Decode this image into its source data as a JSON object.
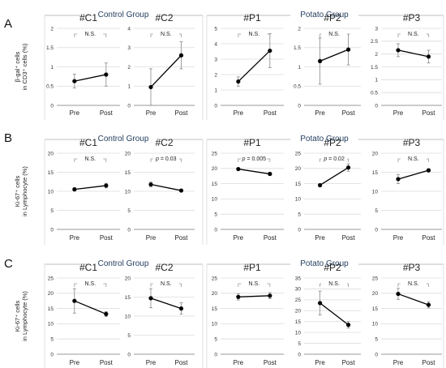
{
  "figure": {
    "rows": [
      {
        "letter": "A",
        "group_left": "Control Group",
        "group_right": "Potato Group",
        "ylabel_lines": [
          "β-gal⁺ cells",
          "in CD3⁺ cells (%)"
        ]
      },
      {
        "letter": "B",
        "group_left": "Control Group",
        "group_right": "Potato Group",
        "ylabel_lines": [
          "Ki-67⁺ cells",
          "in Lymphocyte (%)"
        ]
      },
      {
        "letter": "C",
        "group_left": "Control Group",
        "group_right": "Potato Group",
        "ylabel_lines": [
          "Ki-67⁺ cells",
          "in Lymphocyte (%)"
        ]
      }
    ]
  },
  "chart_data": [
    {
      "type": "line",
      "title": "#C1",
      "categories": [
        "Pre",
        "Post"
      ],
      "values": [
        0.63,
        0.8
      ],
      "errors": [
        0.18,
        0.3
      ],
      "ylim": [
        0,
        2
      ],
      "yticks": [
        0,
        0.5,
        1,
        1.5,
        2
      ],
      "significance": "N.S.",
      "line_color": "#000000"
    },
    {
      "type": "line",
      "title": "#C2",
      "categories": [
        "Pre",
        "Post"
      ],
      "values": [
        0.95,
        2.6
      ],
      "errors": [
        0.95,
        0.7
      ],
      "ylim": [
        0,
        4
      ],
      "yticks": [
        0,
        1,
        2,
        3,
        4
      ],
      "significance": "N.S.",
      "line_color": "#000000"
    },
    {
      "type": "line",
      "title": "#P1",
      "categories": [
        "Pre",
        "Post"
      ],
      "values": [
        1.55,
        3.55
      ],
      "errors": [
        0.3,
        1.1
      ],
      "ylim": [
        0,
        5
      ],
      "yticks": [
        0,
        1,
        2,
        3,
        4,
        5
      ],
      "significance": "N.S.",
      "line_color": "#000000"
    },
    {
      "type": "line",
      "title": "#P2",
      "categories": [
        "Pre",
        "Post"
      ],
      "values": [
        1.15,
        1.45
      ],
      "errors": [
        0.6,
        0.4
      ],
      "ylim": [
        0,
        2
      ],
      "yticks": [
        0,
        0.5,
        1,
        1.5,
        2
      ],
      "significance": "N.S.",
      "line_color": "#000000"
    },
    {
      "type": "line",
      "title": "#P3",
      "categories": [
        "Pre",
        "Post"
      ],
      "values": [
        2.15,
        1.9
      ],
      "errors": [
        0.25,
        0.25
      ],
      "ylim": [
        0,
        3
      ],
      "yticks": [
        0,
        0.5,
        1,
        1.5,
        2,
        2.5,
        3
      ],
      "significance": "N.S.",
      "line_color": "#000000"
    },
    {
      "type": "line",
      "title": "#C1",
      "categories": [
        "Pre",
        "Post"
      ],
      "values": [
        10.5,
        11.5
      ],
      "errors": [
        0.4,
        0.6
      ],
      "ylim": [
        0,
        20
      ],
      "yticks": [
        0,
        5,
        10,
        15,
        20
      ],
      "significance": "N.S.",
      "line_color": "#000000"
    },
    {
      "type": "line",
      "title": "#C2",
      "categories": [
        "Pre",
        "Post"
      ],
      "values": [
        11.8,
        10.2
      ],
      "errors": [
        0.6,
        0.3
      ],
      "ylim": [
        0,
        20
      ],
      "yticks": [
        0,
        5,
        10,
        15,
        20
      ],
      "significance": "p = 0.03",
      "line_color": "#000000"
    },
    {
      "type": "line",
      "title": "#P1",
      "categories": [
        "Pre",
        "Post"
      ],
      "values": [
        19.8,
        18.2
      ],
      "errors": [
        0.3,
        0.5
      ],
      "ylim": [
        0,
        25
      ],
      "yticks": [
        0,
        5,
        10,
        15,
        20,
        25
      ],
      "significance": "p = 0.005",
      "line_color": "#000000"
    },
    {
      "type": "line",
      "title": "#P2",
      "categories": [
        "Pre",
        "Post"
      ],
      "values": [
        14.5,
        20.3
      ],
      "errors": [
        0.4,
        1.2
      ],
      "ylim": [
        0,
        25
      ],
      "yticks": [
        0,
        5,
        10,
        15,
        20,
        25
      ],
      "significance": "p = 0.02",
      "line_color": "#000000"
    },
    {
      "type": "line",
      "title": "#P3",
      "categories": [
        "Pre",
        "Post"
      ],
      "values": [
        13.2,
        15.5
      ],
      "errors": [
        1.2,
        0.4
      ],
      "ylim": [
        0,
        20
      ],
      "yticks": [
        0,
        5,
        10,
        15,
        20
      ],
      "significance": "N.S.",
      "line_color": "#000000"
    },
    {
      "type": "line",
      "title": "#C1",
      "categories": [
        "Pre",
        "Post"
      ],
      "values": [
        17.5,
        13.2
      ],
      "errors": [
        4.0,
        0.8
      ],
      "ylim": [
        0,
        25
      ],
      "yticks": [
        0,
        5,
        10,
        15,
        20,
        25
      ],
      "significance": "N.S.",
      "line_color": "#000000"
    },
    {
      "type": "line",
      "title": "#C2",
      "categories": [
        "Pre",
        "Post"
      ],
      "values": [
        14.7,
        12.0
      ],
      "errors": [
        2.5,
        1.5
      ],
      "ylim": [
        0,
        20
      ],
      "yticks": [
        0,
        5,
        10,
        15,
        20
      ],
      "significance": "N.S.",
      "line_color": "#000000"
    },
    {
      "type": "line",
      "title": "#P1",
      "categories": [
        "Pre",
        "Post"
      ],
      "values": [
        18.8,
        19.2
      ],
      "errors": [
        1.0,
        1.0
      ],
      "ylim": [
        0,
        25
      ],
      "yticks": [
        0,
        5,
        10,
        15,
        20,
        25
      ],
      "significance": "N.S.",
      "line_color": "#000000"
    },
    {
      "type": "line",
      "title": "#P2",
      "categories": [
        "Pre",
        "Post"
      ],
      "values": [
        23.5,
        13.5
      ],
      "errors": [
        5.5,
        1.5
      ],
      "ylim": [
        0,
        35
      ],
      "yticks": [
        0,
        5,
        10,
        15,
        20,
        25,
        30,
        35
      ],
      "significance": "N.S.",
      "line_color": "#000000"
    },
    {
      "type": "line",
      "title": "#P3",
      "categories": [
        "Pre",
        "Post"
      ],
      "values": [
        19.8,
        16.2
      ],
      "errors": [
        1.8,
        1.0
      ],
      "ylim": [
        0,
        25
      ],
      "yticks": [
        0,
        5,
        10,
        15,
        20,
        25
      ],
      "significance": "N.S.",
      "line_color": "#000000"
    }
  ]
}
